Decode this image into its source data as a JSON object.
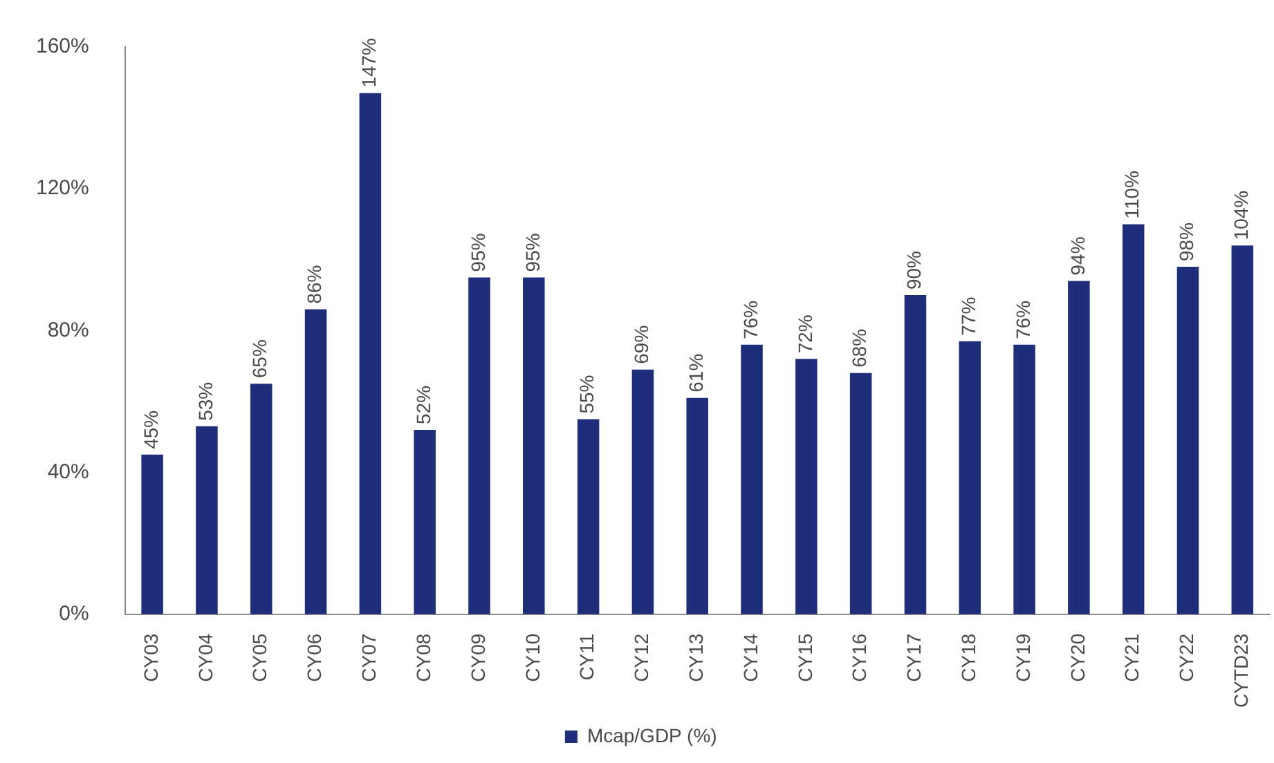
{
  "chart_data": {
    "type": "bar",
    "categories": [
      "CY03",
      "CY04",
      "CY05",
      "CY06",
      "CY07",
      "CY08",
      "CY09",
      "CY10",
      "CY11",
      "CY12",
      "CY13",
      "CY14",
      "CY15",
      "CY16",
      "CY17",
      "CY18",
      "CY19",
      "CY20",
      "CY21",
      "CY22",
      "CYTD23"
    ],
    "series": [
      {
        "name": "Mcap/GDP (%)",
        "color": "#1f2e7a",
        "values": [
          45,
          53,
          65,
          86,
          147,
          52,
          95,
          95,
          55,
          69,
          61,
          76,
          72,
          68,
          90,
          77,
          76,
          94,
          110,
          98,
          104
        ],
        "value_labels": [
          "45%",
          "53%",
          "65%",
          "86%",
          "147%",
          "52%",
          "95%",
          "95%",
          "55%",
          "69%",
          "61%",
          "76%",
          "72%",
          "68%",
          "90%",
          "77%",
          "76%",
          "94%",
          "110%",
          "98%",
          "104%"
        ]
      }
    ],
    "ylim": [
      0,
      160
    ],
    "yticks": [
      {
        "value": 0,
        "label": "0%"
      },
      {
        "value": 40,
        "label": "40%"
      },
      {
        "value": 80,
        "label": "80%"
      },
      {
        "value": 120,
        "label": "120%"
      },
      {
        "value": 160,
        "label": "160%"
      }
    ],
    "legend": "bottom"
  }
}
